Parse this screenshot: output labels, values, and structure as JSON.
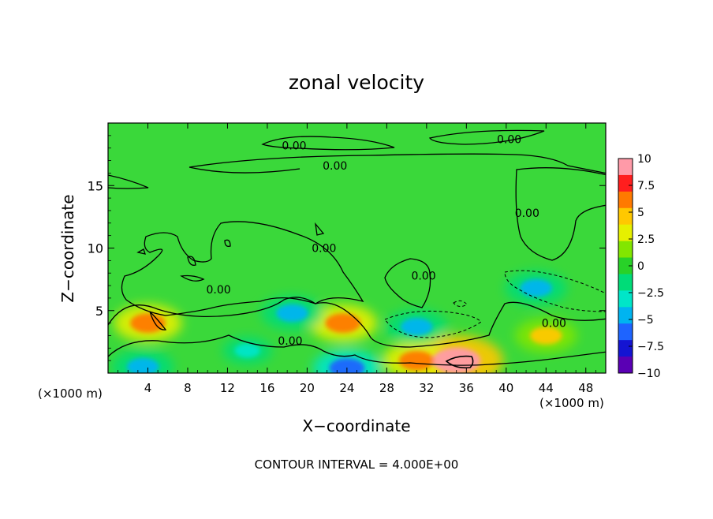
{
  "chart_data": {
    "type": "heatmap",
    "title": "zonal velocity",
    "xlabel": "X−coordinate",
    "ylabel": "Z−coordinate",
    "x_unit_left": "(×1000 m)",
    "x_unit_right": "(×1000 m)",
    "footer": "CONTOUR INTERVAL = 4.000E+00",
    "xlim": [
      0,
      50
    ],
    "ylim": [
      0,
      20
    ],
    "x_ticks": [
      4,
      8,
      12,
      16,
      20,
      24,
      28,
      32,
      36,
      40,
      44,
      48
    ],
    "y_ticks": [
      5,
      10,
      15
    ],
    "colorbar": {
      "range": [
        -10,
        10
      ],
      "ticks": [
        "10",
        "7.5",
        "5",
        "2.5",
        "0",
        "−2.5",
        "−5",
        "−7.5",
        "−10"
      ],
      "colors": [
        "#ff9aa8",
        "#ff1e1e",
        "#ff7a00",
        "#ffc800",
        "#e6f000",
        "#82e600",
        "#28d228",
        "#00dc78",
        "#00e6c8",
        "#00b4f0",
        "#1e64ff",
        "#1414d2",
        "#5a00b4"
      ]
    },
    "contour_labels": [
      {
        "text": "0.00",
        "x": 18.7,
        "y": 18.2
      },
      {
        "text": "0.00",
        "x": 22.8,
        "y": 16.6
      },
      {
        "text": "0.00",
        "x": 40.3,
        "y": 18.7
      },
      {
        "text": "0.00",
        "x": 42.1,
        "y": 12.8
      },
      {
        "text": "0.00",
        "x": 21.7,
        "y": 10.0
      },
      {
        "text": "0.00",
        "x": 31.7,
        "y": 7.8
      },
      {
        "text": "0.00",
        "x": 11.1,
        "y": 6.7
      },
      {
        "text": "0.00",
        "x": 44.8,
        "y": 4.0
      },
      {
        "text": "0.00",
        "x": 18.3,
        "y": 2.6
      }
    ],
    "features": [
      {
        "kind": "max",
        "x": 4,
        "y": 4,
        "value": 6
      },
      {
        "kind": "max",
        "x": 23.6,
        "y": 4,
        "value": 6
      },
      {
        "kind": "max",
        "x": 35,
        "y": 1,
        "value": 10
      },
      {
        "kind": "max",
        "x": 31,
        "y": 1,
        "value": 6
      },
      {
        "kind": "max",
        "x": 44,
        "y": 3,
        "value": 5
      },
      {
        "kind": "min",
        "x": 43,
        "y": 6.8,
        "value": -5
      },
      {
        "kind": "min",
        "x": 31,
        "y": 3.7,
        "value": -5
      },
      {
        "kind": "min",
        "x": 18.5,
        "y": 4.8,
        "value": -5
      },
      {
        "kind": "min",
        "x": 3.5,
        "y": 0.5,
        "value": -5
      },
      {
        "kind": "min",
        "x": 24,
        "y": 0.4,
        "value": -6
      },
      {
        "kind": "min",
        "x": 14,
        "y": 1.8,
        "value": -3
      }
    ]
  }
}
